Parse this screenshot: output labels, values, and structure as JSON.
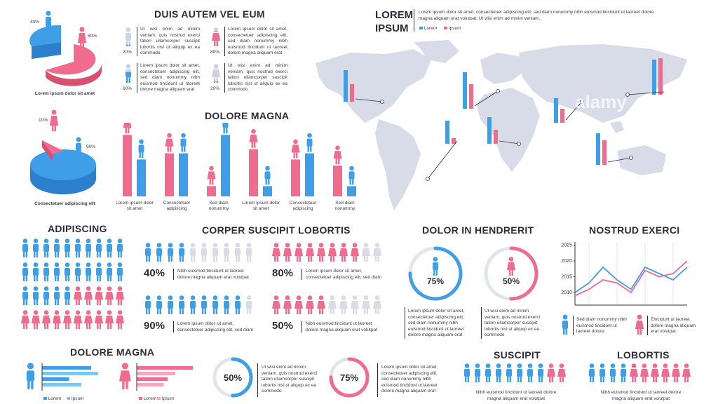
{
  "colors": {
    "blue": "#3f9ee8",
    "lightblue": "#7cc6ef",
    "pink": "#f06c8e",
    "lightpink": "#f7a7bd",
    "gray": "#d9dbe6",
    "map": "#d8dbe8"
  },
  "pie1": {
    "pct_a": "40%",
    "pct_b": "60%",
    "caption": "Lorem ipsum dolor sit amet"
  },
  "pie2": {
    "pct_a": "10%",
    "pct_b": "90%",
    "caption": "Consectetuer adipiscing elit"
  },
  "duis": {
    "title": "DUIS AUTEM VEL EUM",
    "items": [
      {
        "pct": "20%",
        "text": "Ut wisi enim ad minim veniam, quis nostrud exerci tation ullamcorper suscipit lobortis nisl ut aliquip ex ea commodo"
      },
      {
        "pct": "80%",
        "text": "Lorem ipsum dolor sit amet, consectetuer adipiscing elit, sed diam nonummy nibh euismod tincidunt ut laoreet dolore magna aliquam erat"
      },
      {
        "pct": "60%",
        "text": "Lorem ipsum dolor sit amet, consectetuer adipiscing elit, sed diam nonummy nibh euismod tincidunt ut laoreet dolore magna aliquam erat"
      },
      {
        "pct": "20%",
        "text": "Ut wisi enim ad minim veniam, quis nostrud exerci tation ullamcorper suscipit lobortis nisl ut aliquip ex ea commodo"
      }
    ]
  },
  "lorem_ipsum": {
    "title_line1": "LOREM",
    "title_line2": "IPSUM",
    "text": "Lorem ipsum dolor sit amet, consectetuer adipiscing elit, sed diam nonummy nibh euismod tincidunt ut laoreet dolore magna aliquam erat volutpat. Ut wisi enim ad minim veniam.",
    "legend_a": "Lorem",
    "legend_b": "Ipsum"
  },
  "watermark": "alamy",
  "dolore_magna_top": {
    "title": "DOLORE MAGNA"
  },
  "adipiscing": {
    "title": "ADIPISCING"
  },
  "corper": {
    "title": "CORPER SUSCIPIT LOBORTIS",
    "items": [
      {
        "pct": "40%",
        "text": "Nibh euismod tincidunt ut laoreet dolore magna aliquam erat volutpat"
      },
      {
        "pct": "80%",
        "text": "Lorem ipsum dolor sit amet, consectetuer adipiscing elit, sed diam"
      },
      {
        "pct": "90%",
        "text": "Lorem ipsum dolor sit amet, consectetuer adipiscing elit, sed diam"
      },
      {
        "pct": "50%",
        "text": "Nibh euismod tincidunt ut laoreet dolore magna aliquam erat volutpat"
      }
    ]
  },
  "dolor_hendrerit": {
    "title": "DOLOR IN HENDRERIT",
    "rings": [
      {
        "pct": "75%"
      },
      {
        "pct": "50%"
      }
    ],
    "text_a": "Lorem ipsum dolor sit amet, consectetuer adipiscing elit, sed diam nonummy nibh euismod tincidunt ut laoreet dolore magna aliquam erat",
    "text_b": "Ut wisi enim ad minim veniam, quis nostrud exerci tation ullamcorper suscipit lobortis nisl ut aliquip ex ea commodo"
  },
  "nostrud": {
    "title": "NOSTRUD EXERCI",
    "text_a": "Sed diam nonummy nibh euismod tincidunt ut laoreet dolore",
    "text_b": "Eincidunt ut laoreet dolore magna aliquam erat volutpat"
  },
  "dolore_magna_bottom": {
    "title": "DOLORE MAGNA",
    "legend_a": "Lorem",
    "legend_b": "Ipsum"
  },
  "bottom_rings": {
    "rings": [
      {
        "pct": "50%"
      },
      {
        "pct": "75%"
      }
    ],
    "text_a": "Ut wisi enim ad minim veniam, quis nostrud exerci tation ullamcorper suscipit lobortis nisl ut aliquip ex ea commodo",
    "text_b": "Lorem ipsum dolor sit amet, consectetuer adipiscing elit, sed diam nonummy nibh euismod tincidunt ut laoreet dolore magna aliquam erat"
  },
  "suscipit": {
    "title": "SUSCIPIT",
    "text": "Nibh euismod tincidunt ut laoreet dolore magna aliquam erat volutpat"
  },
  "lobortis": {
    "title": "LOBORTIS",
    "text": "Nibh euismod tincidunt ut laoreet dolore magna aliquam erat volutpat"
  },
  "chart_data": [
    {
      "type": "bar",
      "title": "DOLORE MAGNA",
      "categories": [
        "Lorem ipsum dolor sit amet",
        "Consectetuer adipiscing",
        "Sed diam nonummy",
        "Lorem ipsum dolor sit amet",
        "Consectetuer adipiscing",
        "Sed diam nonummy"
      ],
      "series": [
        {
          "color": "#f06c8e",
          "values": [
            60,
            42,
            10,
            46,
            36,
            30
          ]
        },
        {
          "color": "#3f9ee8",
          "values": [
            36,
            42,
            60,
            10,
            42,
            10
          ]
        }
      ],
      "ylim": [
        0,
        65
      ]
    },
    {
      "type": "line",
      "title": "NOSTRUD EXERCI",
      "x": [
        1,
        2,
        3,
        4,
        5,
        6,
        7,
        8,
        9
      ],
      "yticks": [
        "2025",
        "2020",
        "2015",
        "2010"
      ],
      "ylim": [
        2006,
        2026
      ],
      "series": [
        {
          "color": "#3f9ee8",
          "values": [
            2010,
            2013,
            2018,
            2014,
            2011,
            2018,
            2016,
            2014,
            2018
          ]
        },
        {
          "color": "#f06c8e",
          "values": [
            2009,
            2011,
            2014,
            2013,
            2010,
            2017,
            2015,
            2016,
            2020
          ]
        }
      ]
    },
    {
      "type": "bar",
      "title": "LOREM IPSUM",
      "categories": [
        "North America",
        "Greenland",
        "South America",
        "Africa",
        "Asia",
        "Russia",
        "Australia"
      ],
      "series": [
        {
          "name": "Lorem",
          "color": "#3f9ee8",
          "values": [
            45,
            52,
            33,
            38,
            35,
            50,
            45
          ]
        },
        {
          "name": "Ipsum",
          "color": "#f06c8e",
          "values": [
            25,
            35,
            8,
            20,
            20,
            52,
            35
          ]
        }
      ]
    },
    {
      "type": "bar",
      "title": "DOLORE MAGNA",
      "categories": [
        "Male",
        "Female"
      ],
      "series": [
        {
          "name": "Lorem",
          "color": "#3f9ee8",
          "values": [
            70,
            80
          ]
        },
        {
          "name": "Ipsum",
          "color": "#7cc6ef",
          "values": [
            80,
            55
          ]
        }
      ]
    }
  ]
}
